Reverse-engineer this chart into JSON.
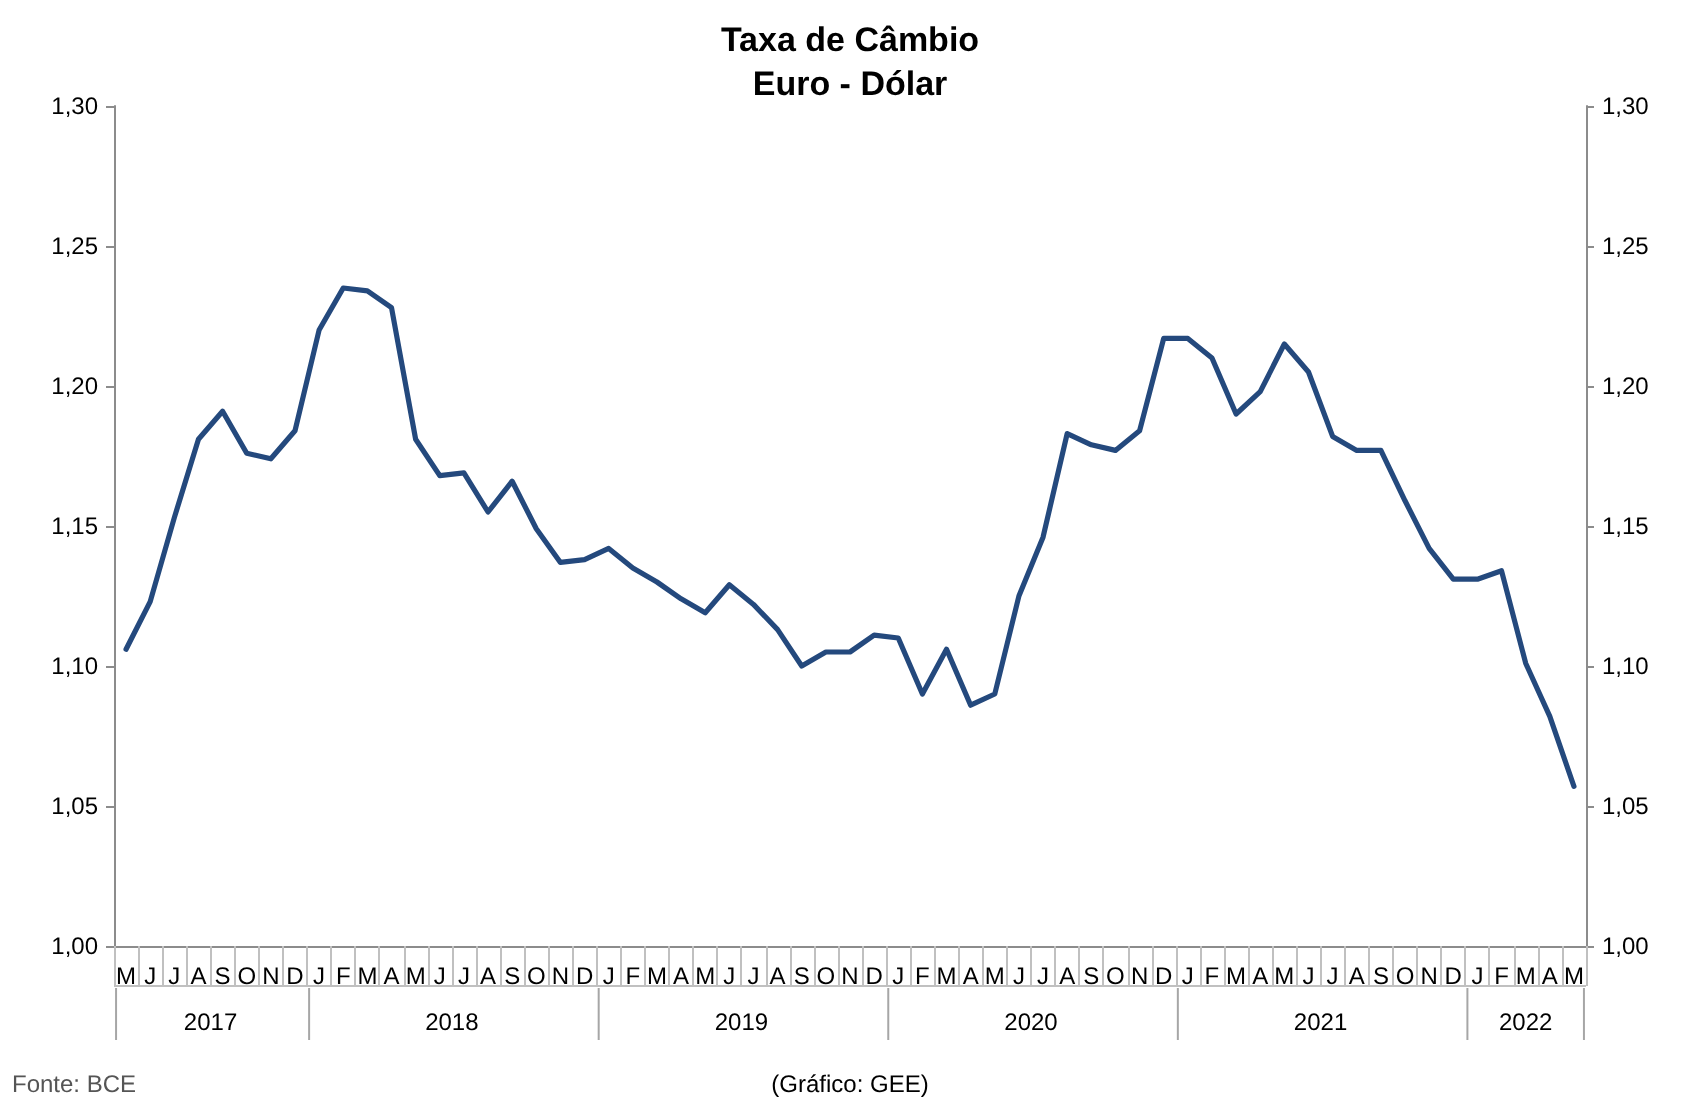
{
  "chart_data": {
    "type": "line",
    "title": "Taxa de Câmbio\nEuro - Dólar",
    "categories": [
      "M",
      "J",
      "J",
      "A",
      "S",
      "O",
      "N",
      "D",
      "J",
      "F",
      "M",
      "A",
      "M",
      "J",
      "J",
      "A",
      "S",
      "O",
      "N",
      "D",
      "J",
      "F",
      "M",
      "A",
      "M",
      "J",
      "J",
      "A",
      "S",
      "O",
      "N",
      "D",
      "J",
      "F",
      "M",
      "A",
      "M",
      "J",
      "J",
      "A",
      "S",
      "O",
      "N",
      "D",
      "J",
      "F",
      "M",
      "A",
      "M",
      "J",
      "J",
      "A",
      "S",
      "O",
      "N",
      "D",
      "J",
      "F",
      "M",
      "A",
      "M"
    ],
    "series": [
      {
        "color": "#24497d",
        "values": [
          1.106,
          1.123,
          1.153,
          1.181,
          1.191,
          1.176,
          1.174,
          1.184,
          1.22,
          1.235,
          1.234,
          1.228,
          1.181,
          1.168,
          1.169,
          1.155,
          1.166,
          1.149,
          1.137,
          1.138,
          1.142,
          1.135,
          1.13,
          1.124,
          1.119,
          1.129,
          1.122,
          1.113,
          1.1,
          1.105,
          1.105,
          1.111,
          1.11,
          1.09,
          1.106,
          1.086,
          1.09,
          1.125,
          1.146,
          1.183,
          1.179,
          1.177,
          1.184,
          1.217,
          1.217,
          1.21,
          1.19,
          1.198,
          1.215,
          1.205,
          1.182,
          1.177,
          1.177,
          1.159,
          1.142,
          1.131,
          1.131,
          1.134,
          1.101,
          1.082,
          1.057
        ]
      }
    ],
    "ylim": [
      1.0,
      1.3
    ],
    "yticks": [
      {
        "value": 1.0,
        "label": "1,00"
      },
      {
        "value": 1.05,
        "label": "1,05"
      },
      {
        "value": 1.1,
        "label": "1,10"
      },
      {
        "value": 1.15,
        "label": "1,15"
      },
      {
        "value": 1.2,
        "label": "1,20"
      },
      {
        "value": 1.25,
        "label": "1,25"
      },
      {
        "value": 1.3,
        "label": "1,30"
      }
    ],
    "y2lim": [
      1.0,
      1.3
    ],
    "y2ticks": [
      {
        "value": 1.0,
        "label": "1,00"
      },
      {
        "value": 1.05,
        "label": "1,05"
      },
      {
        "value": 1.1,
        "label": "1,10"
      },
      {
        "value": 1.15,
        "label": "1,15"
      },
      {
        "value": 1.2,
        "label": "1,20"
      },
      {
        "value": 1.25,
        "label": "1,25"
      },
      {
        "value": 1.3,
        "label": "1,30"
      }
    ],
    "annotations": [
      "2017",
      "2018",
      "2019",
      "2020",
      "2021",
      "2022",
      "Fonte: BCE",
      "(Gráfico: GEE)"
    ],
    "grid": false,
    "marker": "none",
    "line_style": "solid"
  }
}
